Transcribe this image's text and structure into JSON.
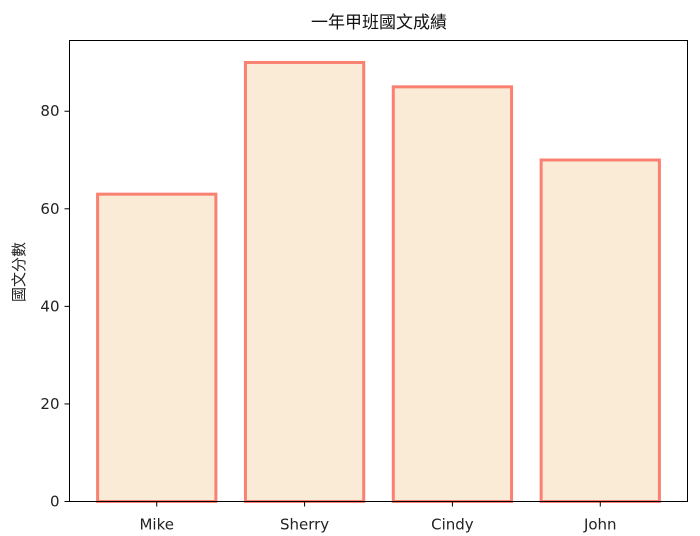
{
  "chart_data": {
    "type": "bar",
    "title": "一年甲班國文成績",
    "xlabel": "",
    "ylabel": "國文分數",
    "categories": [
      "Mike",
      "Sherry",
      "Cindy",
      "John"
    ],
    "values": [
      63,
      90,
      85,
      70
    ],
    "ylim": [
      0,
      94.5
    ],
    "yticks": [
      0,
      20,
      40,
      60,
      80
    ],
    "grid": false,
    "bar_fill": "#FAEBD7",
    "bar_edge": "#FA8072"
  }
}
